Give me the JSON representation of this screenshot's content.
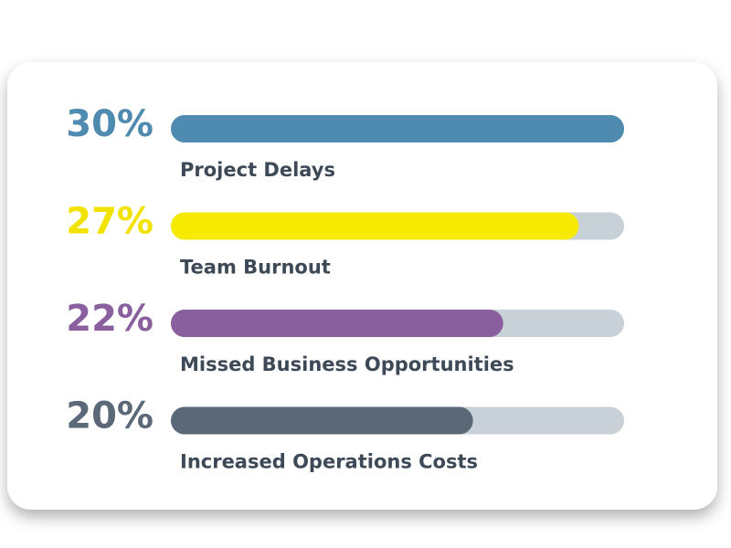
{
  "chart_data": {
    "type": "bar",
    "orientation": "horizontal",
    "categories": [
      "Project Delays",
      "Team Burnout",
      "Missed Business Opportunities",
      "Increased Operations Costs"
    ],
    "values": [
      30,
      27,
      22,
      20
    ],
    "value_labels": [
      "30%",
      "27%",
      "22%",
      "20%"
    ],
    "colors": [
      "#4f8ab0",
      "#f5ea00",
      "#895f9d",
      "#5b6877"
    ],
    "track_color": "#c9d1d8",
    "xlim": [
      0,
      30
    ]
  }
}
